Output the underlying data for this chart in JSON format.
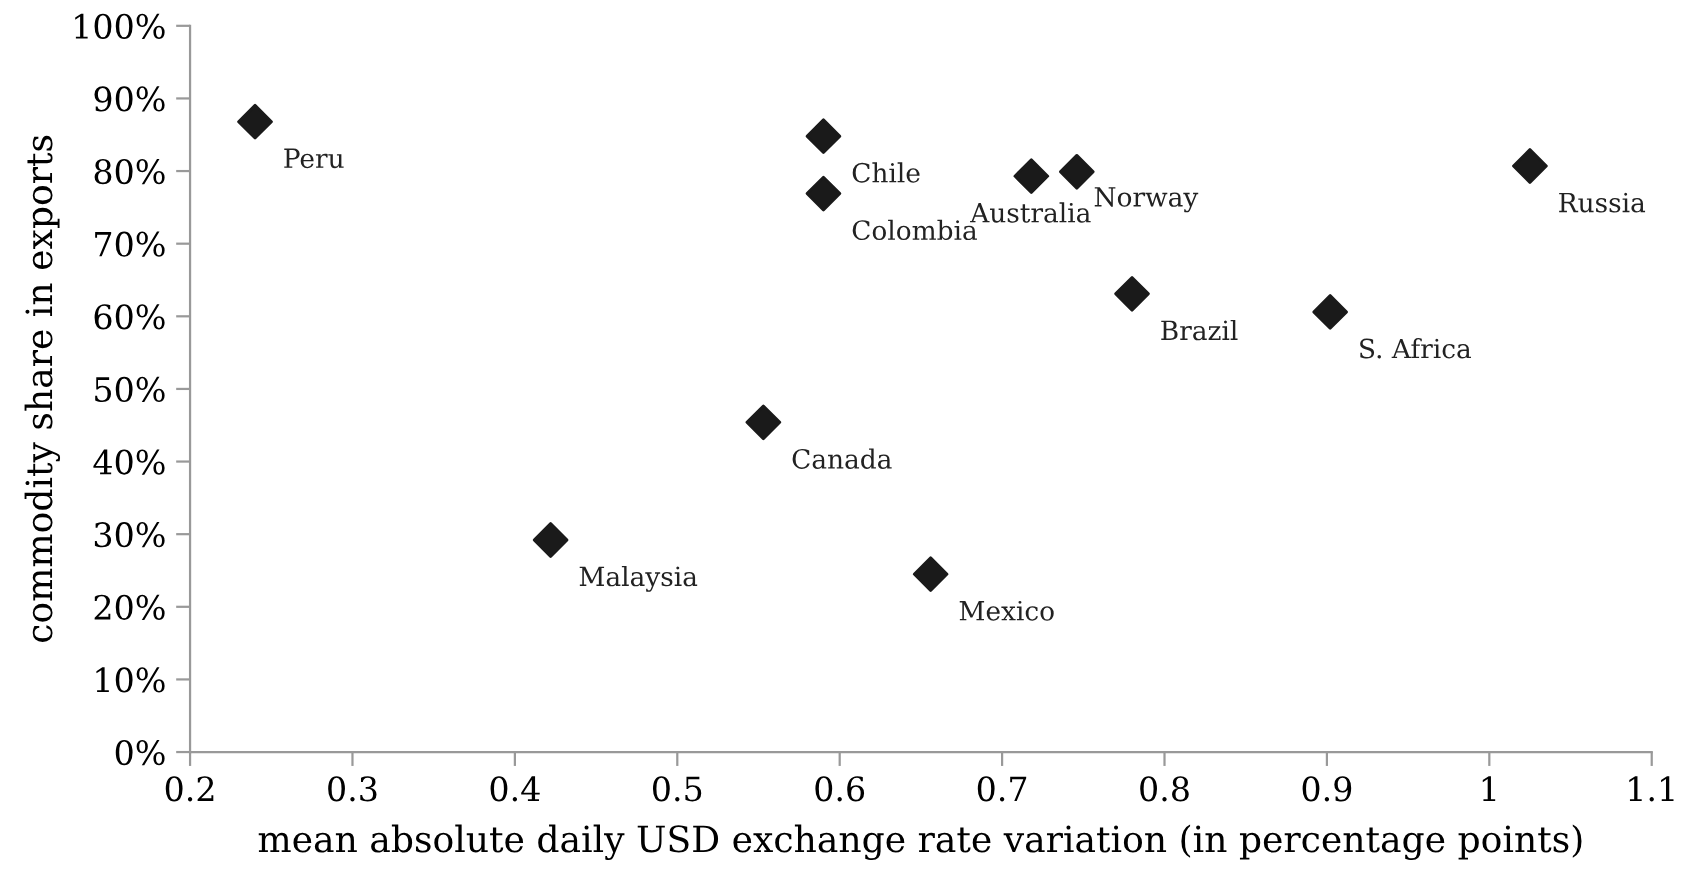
{
  "chart_data": {
    "type": "scatter",
    "xlabel": "mean absolute daily USD exchange rate variation (in percentage points)",
    "ylabel": "commodity share in exports",
    "x": [
      0.24,
      0.59,
      0.59,
      0.553,
      0.422,
      0.718,
      0.746,
      0.78,
      0.902,
      1.025,
      0.656
    ],
    "series": [
      {
        "color": "#1a1a1a",
        "values": [
          86.8,
          84.8,
          76.9,
          45.4,
          29.2,
          79.3,
          79.9,
          63.1,
          60.6,
          80.7,
          24.5
        ]
      }
    ],
    "marker": "diamond",
    "grid": false,
    "legend": false,
    "xlim": [
      0.2,
      1.1
    ],
    "xticks": [
      0.2,
      0.3,
      0.4,
      0.5,
      0.6,
      0.7,
      0.8,
      0.9,
      1,
      1.1
    ],
    "ylim": [
      0,
      100
    ],
    "yticks": [
      {
        "value": 0,
        "label": "0%"
      },
      {
        "value": 10,
        "label": "10%"
      },
      {
        "value": 20,
        "label": "20%"
      },
      {
        "value": 30,
        "label": "30%"
      },
      {
        "value": 40,
        "label": "40%"
      },
      {
        "value": 50,
        "label": "50%"
      },
      {
        "value": 60,
        "label": "60%"
      },
      {
        "value": 70,
        "label": "70%"
      },
      {
        "value": 80,
        "label": "80%"
      },
      {
        "value": 90,
        "label": "90%"
      },
      {
        "value": 100,
        "label": "100%"
      }
    ],
    "annotations": [
      {
        "text": "Peru",
        "x": 0.24,
        "y": 86.8
      },
      {
        "text": "Chile",
        "x": 0.59,
        "y": 84.8
      },
      {
        "text": "Colombia",
        "x": 0.59,
        "y": 76.9
      },
      {
        "text": "Canada",
        "x": 0.553,
        "y": 45.4
      },
      {
        "text": "Malaysia",
        "x": 0.422,
        "y": 29.2
      },
      {
        "text": "Australia",
        "x": 0.718,
        "y": 79.3
      },
      {
        "text": "Norway",
        "x": 0.746,
        "y": 79.9
      },
      {
        "text": "Brazil",
        "x": 0.78,
        "y": 63.1
      },
      {
        "text": "S. Africa",
        "x": 0.902,
        "y": 60.6
      },
      {
        "text": "Russia",
        "x": 1.025,
        "y": 80.7
      },
      {
        "text": "Mexico",
        "x": 0.656,
        "y": 24.5
      }
    ]
  }
}
